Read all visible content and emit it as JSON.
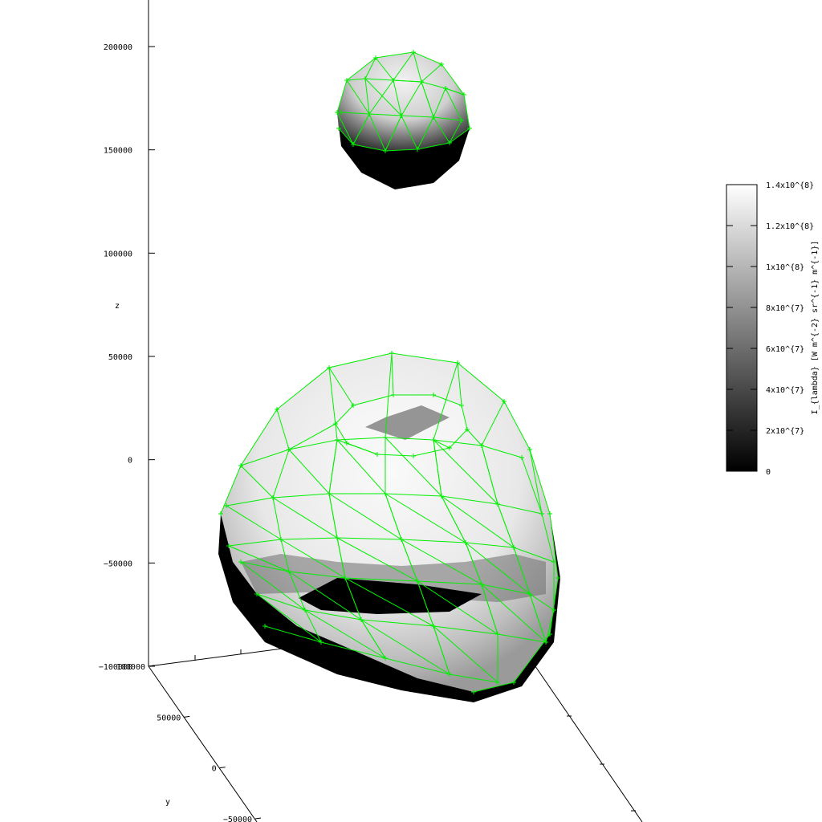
{
  "chart_data": {
    "type": "surface3d",
    "title": "",
    "z_axis": {
      "label": "z",
      "ticks": [
        200000,
        150000,
        100000,
        50000,
        0,
        -50000,
        -100000
      ],
      "tick_labels": [
        "200000",
        "150000",
        "100000",
        "50000",
        "0",
        "−50000",
        "−100000"
      ]
    },
    "y_axis": {
      "label": "y",
      "ticks": [
        100000,
        50000,
        0,
        -50000
      ],
      "tick_labels": [
        "100000",
        "50000",
        "0",
        "−50000"
      ]
    },
    "colorbar": {
      "label": "I_{lambda} [W m^{-2} sr^{-1} m^{-1}]",
      "range": [
        0,
        140000000
      ],
      "colormap": "grayscale",
      "ticks": [
        0,
        20000000,
        40000000,
        60000000,
        80000000,
        100000000,
        120000000,
        140000000
      ],
      "tick_labels": [
        "0",
        "2x10^{7}",
        "4x10^{7}",
        "6x10^{7}",
        "8x10^{7}",
        "1x10^{8}",
        "1.2x10^{8}",
        "1.4x10^{8}"
      ]
    },
    "mesh_color": "#00ee00",
    "objects": [
      "small-sphere",
      "large-toroidal-body"
    ]
  }
}
